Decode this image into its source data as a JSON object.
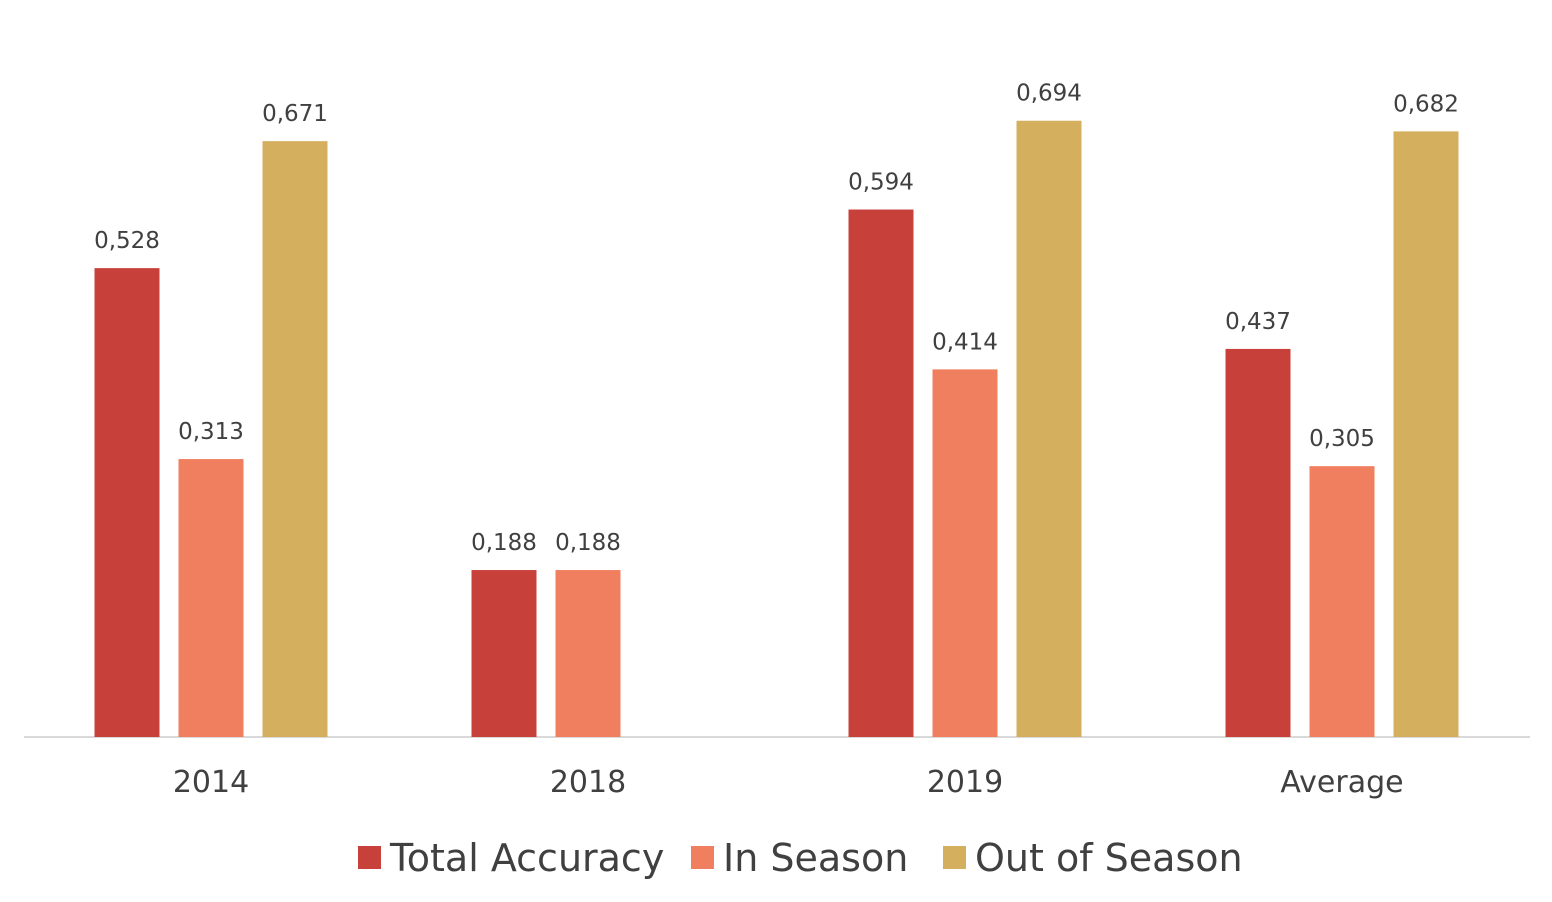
{
  "chart_data": {
    "type": "bar",
    "title": "",
    "xlabel": "",
    "ylabel": "",
    "categories": [
      "2014",
      "2018",
      "2019",
      "Average"
    ],
    "series": [
      {
        "name": "Total Accuracy",
        "color": "#C8403A",
        "values": [
          0.528,
          0.188,
          0.594,
          0.437
        ],
        "labels": [
          "0,528",
          "0,188",
          "0,594",
          "0,437"
        ]
      },
      {
        "name": "In Season",
        "color": "#EF7F5E",
        "values": [
          0.313,
          0.188,
          0.414,
          0.305
        ],
        "labels": [
          "0,313",
          "0,188",
          "0,414",
          "0,305"
        ]
      },
      {
        "name": "Out of Season",
        "color": "#D4AF5E",
        "values": [
          0.671,
          null,
          0.694,
          0.682
        ],
        "labels": [
          "0,671",
          "",
          "0,694",
          "0,682"
        ]
      }
    ],
    "ylim": [
      0,
      0.8
    ],
    "grid": false,
    "legend_position": "bottom",
    "baseline_color": "#D9D9D9"
  }
}
